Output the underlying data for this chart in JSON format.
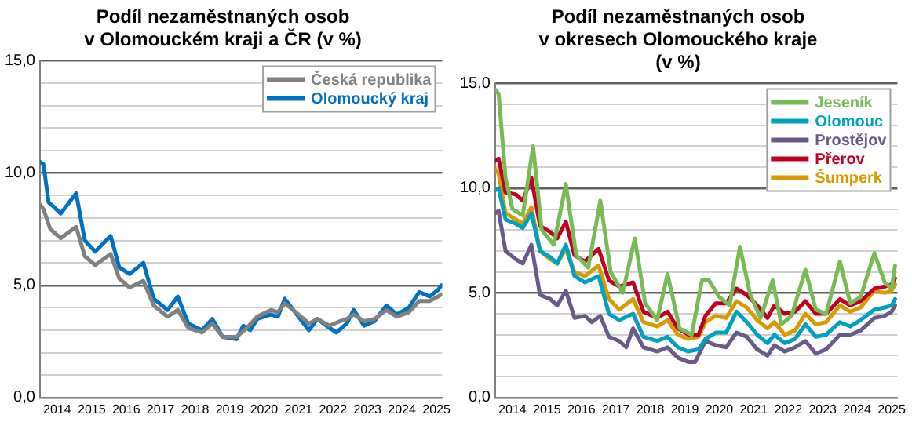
{
  "chart_data": [
    {
      "type": "line",
      "title": [
        "Podíl nezaměstnaných osob",
        "v Olomouckém kraji a ČR (v %)"
      ],
      "xlim": [
        2014,
        2025.67
      ],
      "xticks": [
        {
          "value": 2014.5,
          "label": "2014"
        },
        {
          "value": 2015.5,
          "label": "2015"
        },
        {
          "value": 2016.5,
          "label": "2016"
        },
        {
          "value": 2017.5,
          "label": "2017"
        },
        {
          "value": 2018.5,
          "label": "2018"
        },
        {
          "value": 2019.5,
          "label": "2019"
        },
        {
          "value": 2020.5,
          "label": "2020"
        },
        {
          "value": 2021.5,
          "label": "2021"
        },
        {
          "value": 2022.5,
          "label": "2022"
        },
        {
          "value": 2023.5,
          "label": "2023"
        },
        {
          "value": 2024.5,
          "label": "2024"
        },
        {
          "value": 2025.5,
          "label": "2025"
        }
      ],
      "ylim": [
        0,
        15
      ],
      "yticks": [
        {
          "value": 0,
          "label": "0,0"
        },
        {
          "value": 1,
          "label": null
        },
        {
          "value": 2,
          "label": null
        },
        {
          "value": 3,
          "label": null
        },
        {
          "value": 4,
          "label": null
        },
        {
          "value": 5,
          "label": "5,0"
        },
        {
          "value": 6,
          "label": null
        },
        {
          "value": 7,
          "label": null
        },
        {
          "value": 8,
          "label": null
        },
        {
          "value": 9,
          "label": null
        },
        {
          "value": 10,
          "label": "10,0"
        },
        {
          "value": 11,
          "label": null
        },
        {
          "value": 12,
          "label": null
        },
        {
          "value": 13,
          "label": null
        },
        {
          "value": 14,
          "label": null
        },
        {
          "value": 15,
          "label": "15,0"
        }
      ],
      "grid": "y",
      "legend": "top right",
      "marker": "none",
      "line_style": "solid",
      "series": [
        {
          "name": "Česká republika",
          "color": "#808080",
          "x": [
            2014,
            2014.1,
            2014.3,
            2014.6,
            2015.05,
            2015.3,
            2015.6,
            2016.05,
            2016.3,
            2016.6,
            2017,
            2017.3,
            2017.7,
            2018,
            2018.3,
            2018.7,
            2019,
            2019.3,
            2019.7,
            2020,
            2020.3,
            2020.7,
            2020.9,
            2021.1,
            2021.5,
            2021.8,
            2022.05,
            2022.4,
            2022.7,
            2022.9,
            2023.1,
            2023.4,
            2023.7,
            2024.05,
            2024.35,
            2024.7,
            2025,
            2025.3,
            2025.55,
            2025.65
          ],
          "values": [
            8.6,
            8.4,
            7.5,
            7.1,
            7.6,
            6.3,
            5.9,
            6.4,
            5.3,
            4.9,
            5.2,
            4.1,
            3.6,
            3.9,
            3.1,
            2.9,
            3.3,
            2.7,
            2.7,
            3.1,
            3.6,
            3.9,
            3.8,
            4.2,
            3.7,
            3.3,
            3.5,
            3.2,
            3.4,
            3.5,
            3.7,
            3.4,
            3.5,
            3.9,
            3.6,
            3.8,
            4.3,
            4.3,
            4.5,
            4.6
          ]
        },
        {
          "name": "Olomoucký kraj",
          "color": "#0070c0",
          "x": [
            2014,
            2014.1,
            2014.25,
            2014.4,
            2014.6,
            2015.05,
            2015.3,
            2015.6,
            2016.05,
            2016.3,
            2016.6,
            2017,
            2017.3,
            2017.7,
            2018,
            2018.3,
            2018.7,
            2019,
            2019.3,
            2019.7,
            2019.9,
            2020.1,
            2020.3,
            2020.7,
            2020.9,
            2021.1,
            2021.5,
            2021.8,
            2022.05,
            2022.4,
            2022.6,
            2022.9,
            2023.1,
            2023.4,
            2023.7,
            2024.05,
            2024.35,
            2024.7,
            2025,
            2025.3,
            2025.55,
            2025.65
          ],
          "values": [
            10.5,
            10.4,
            8.7,
            8.5,
            8.2,
            9.1,
            7.0,
            6.5,
            7.2,
            5.8,
            5.5,
            6.0,
            4.4,
            3.9,
            4.5,
            3.3,
            3.0,
            3.5,
            2.7,
            2.6,
            3.2,
            3.0,
            3.5,
            3.7,
            3.6,
            4.4,
            3.6,
            3.0,
            3.5,
            3.1,
            2.9,
            3.3,
            3.9,
            3.2,
            3.4,
            4.1,
            3.7,
            4.0,
            4.7,
            4.5,
            4.8,
            5.0
          ]
        }
      ]
    },
    {
      "type": "line",
      "title": [
        "Podíl nezaměstnaných osob",
        "v okresech Olomouckého kraje",
        "(v %)"
      ],
      "xlim": [
        2014,
        2025.67
      ],
      "xticks": [
        {
          "value": 2014.5,
          "label": "2014"
        },
        {
          "value": 2015.5,
          "label": "2015"
        },
        {
          "value": 2016.5,
          "label": "2016"
        },
        {
          "value": 2017.5,
          "label": "2017"
        },
        {
          "value": 2018.5,
          "label": "2018"
        },
        {
          "value": 2019.5,
          "label": "2019"
        },
        {
          "value": 2020.5,
          "label": "2020"
        },
        {
          "value": 2021.5,
          "label": "2021"
        },
        {
          "value": 2022.5,
          "label": "2022"
        },
        {
          "value": 2023.5,
          "label": "2023"
        },
        {
          "value": 2024.5,
          "label": "2024"
        },
        {
          "value": 2025.5,
          "label": "2025"
        }
      ],
      "ylim": [
        0,
        15
      ],
      "yticks": [
        {
          "value": 0,
          "label": "0,0"
        },
        {
          "value": 1,
          "label": null
        },
        {
          "value": 2,
          "label": null
        },
        {
          "value": 3,
          "label": null
        },
        {
          "value": 4,
          "label": null
        },
        {
          "value": 5,
          "label": "5,0"
        },
        {
          "value": 6,
          "label": null
        },
        {
          "value": 7,
          "label": null
        },
        {
          "value": 8,
          "label": null
        },
        {
          "value": 9,
          "label": null
        },
        {
          "value": 10,
          "label": "10,0"
        },
        {
          "value": 11,
          "label": null
        },
        {
          "value": 12,
          "label": null
        },
        {
          "value": 13,
          "label": null
        },
        {
          "value": 14,
          "label": null
        },
        {
          "value": 15,
          "label": "15,0"
        }
      ],
      "grid": "y",
      "legend": "top right",
      "marker": "none",
      "line_style": "solid",
      "series": [
        {
          "name": "Jeseník",
          "color": "#77bb55",
          "x": [
            2014,
            2014.1,
            2014.3,
            2014.5,
            2014.8,
            2015.1,
            2015.35,
            2015.7,
            2016.05,
            2016.35,
            2016.7,
            2017.05,
            2017.35,
            2017.7,
            2018.05,
            2018.35,
            2018.7,
            2019,
            2019.35,
            2019.7,
            2020,
            2020.2,
            2020.5,
            2020.8,
            2021.1,
            2021.4,
            2021.7,
            2022.05,
            2022.3,
            2022.6,
            2023,
            2023.3,
            2023.6,
            2024,
            2024.3,
            2024.6,
            2025,
            2025.3,
            2025.5,
            2025.6
          ],
          "values": [
            14.7,
            14.5,
            10.5,
            9.0,
            8.7,
            12.0,
            8.0,
            7.3,
            10.2,
            6.8,
            6.2,
            9.4,
            6.0,
            5.0,
            7.6,
            4.5,
            3.7,
            5.9,
            3.3,
            3.0,
            5.6,
            5.6,
            4.8,
            4.4,
            7.2,
            4.9,
            3.8,
            5.6,
            3.5,
            3.9,
            6.1,
            4.2,
            4.0,
            6.5,
            4.5,
            4.8,
            6.9,
            5.5,
            5.2,
            6.3
          ]
        },
        {
          "name": "Olomouc",
          "color": "#00a0c0",
          "x": [
            2014,
            2014.1,
            2014.3,
            2014.6,
            2014.8,
            2015.05,
            2015.3,
            2015.6,
            2015.8,
            2016.05,
            2016.3,
            2016.6,
            2017,
            2017.3,
            2017.6,
            2018,
            2018.3,
            2018.7,
            2019,
            2019.3,
            2019.6,
            2019.9,
            2020.1,
            2020.4,
            2020.7,
            2021,
            2021.3,
            2021.6,
            2021.9,
            2022.1,
            2022.4,
            2022.7,
            2023,
            2023.3,
            2023.6,
            2024,
            2024.3,
            2024.6,
            2025,
            2025.3,
            2025.5,
            2025.6
          ],
          "values": [
            9.9,
            10.0,
            8.5,
            8.3,
            8.1,
            8.8,
            7.0,
            6.7,
            6.4,
            7.3,
            5.8,
            5.5,
            5.8,
            4.0,
            3.7,
            4.0,
            2.9,
            2.7,
            2.9,
            2.4,
            2.2,
            2.3,
            2.8,
            3.1,
            3.1,
            4.1,
            3.6,
            3.0,
            2.6,
            3.0,
            2.6,
            2.8,
            3.5,
            2.9,
            3.0,
            3.6,
            3.4,
            3.7,
            4.2,
            4.3,
            4.4,
            4.7
          ]
        },
        {
          "name": "Prostějov",
          "color": "#6a5a88",
          "x": [
            2014,
            2014.1,
            2014.3,
            2014.6,
            2014.8,
            2015.05,
            2015.3,
            2015.6,
            2015.8,
            2016.05,
            2016.3,
            2016.6,
            2016.8,
            2017.05,
            2017.3,
            2017.6,
            2017.8,
            2018,
            2018.3,
            2018.7,
            2019,
            2019.3,
            2019.6,
            2019.8,
            2020.1,
            2020.4,
            2020.7,
            2021,
            2021.3,
            2021.6,
            2021.9,
            2022.1,
            2022.4,
            2022.7,
            2023,
            2023.3,
            2023.6,
            2024,
            2024.3,
            2024.6,
            2025,
            2025.3,
            2025.5,
            2025.6
          ],
          "values": [
            8.8,
            8.9,
            7.0,
            6.6,
            6.4,
            7.3,
            4.9,
            4.7,
            4.4,
            5.1,
            3.8,
            3.9,
            3.6,
            3.9,
            2.9,
            2.7,
            2.4,
            3.3,
            2.4,
            2.2,
            2.4,
            1.9,
            1.7,
            1.7,
            2.7,
            2.5,
            2.4,
            3.1,
            2.9,
            2.3,
            2.0,
            2.5,
            2.2,
            2.4,
            2.7,
            2.1,
            2.3,
            3.0,
            3.0,
            3.2,
            3.8,
            3.9,
            4.1,
            4.4
          ]
        },
        {
          "name": "Přerov",
          "color": "#c00020",
          "x": [
            2014,
            2014.1,
            2014.3,
            2014.6,
            2014.8,
            2015.05,
            2015.3,
            2015.6,
            2015.8,
            2016.05,
            2016.3,
            2016.6,
            2017,
            2017.3,
            2017.6,
            2018,
            2018.3,
            2018.7,
            2019,
            2019.3,
            2019.6,
            2019.9,
            2020.1,
            2020.4,
            2020.7,
            2021,
            2021.3,
            2021.6,
            2021.9,
            2022.1,
            2022.4,
            2022.7,
            2023,
            2023.3,
            2023.6,
            2024,
            2024.3,
            2024.6,
            2025,
            2025.3,
            2025.5,
            2025.6
          ],
          "values": [
            11.3,
            11.4,
            9.8,
            9.7,
            9.4,
            10.5,
            8.2,
            7.9,
            7.6,
            8.4,
            6.8,
            6.5,
            7.1,
            5.6,
            5.3,
            5.5,
            4.1,
            3.8,
            4.1,
            3.3,
            3.0,
            3.0,
            3.9,
            4.5,
            4.5,
            5.2,
            4.9,
            4.4,
            3.8,
            4.4,
            4.0,
            4.1,
            4.6,
            4.0,
            4.0,
            4.7,
            4.4,
            4.6,
            5.2,
            5.3,
            5.4,
            5.7
          ]
        },
        {
          "name": "Šumperk",
          "color": "#d89a00",
          "x": [
            2014,
            2014.1,
            2014.3,
            2014.6,
            2014.8,
            2015.05,
            2015.3,
            2015.6,
            2015.8,
            2016.05,
            2016.3,
            2016.6,
            2017,
            2017.3,
            2017.6,
            2018,
            2018.3,
            2018.7,
            2019,
            2019.3,
            2019.6,
            2019.9,
            2020.1,
            2020.4,
            2020.7,
            2021,
            2021.3,
            2021.6,
            2021.9,
            2022.1,
            2022.4,
            2022.7,
            2023,
            2023.3,
            2023.6,
            2024,
            2024.3,
            2024.6,
            2025,
            2025.3,
            2025.5,
            2025.6
          ],
          "values": [
            10.9,
            10.7,
            8.8,
            8.5,
            8.3,
            9.1,
            7.0,
            6.6,
            6.4,
            7.1,
            6.0,
            5.8,
            6.3,
            4.7,
            4.2,
            4.7,
            3.6,
            3.4,
            3.7,
            3.0,
            2.8,
            2.9,
            3.6,
            3.9,
            3.8,
            4.6,
            4.3,
            3.7,
            3.3,
            3.6,
            3.0,
            3.2,
            4.0,
            3.5,
            3.6,
            4.4,
            4.1,
            4.3,
            5.1,
            5.0,
            5.1,
            5.4
          ]
        }
      ]
    }
  ]
}
